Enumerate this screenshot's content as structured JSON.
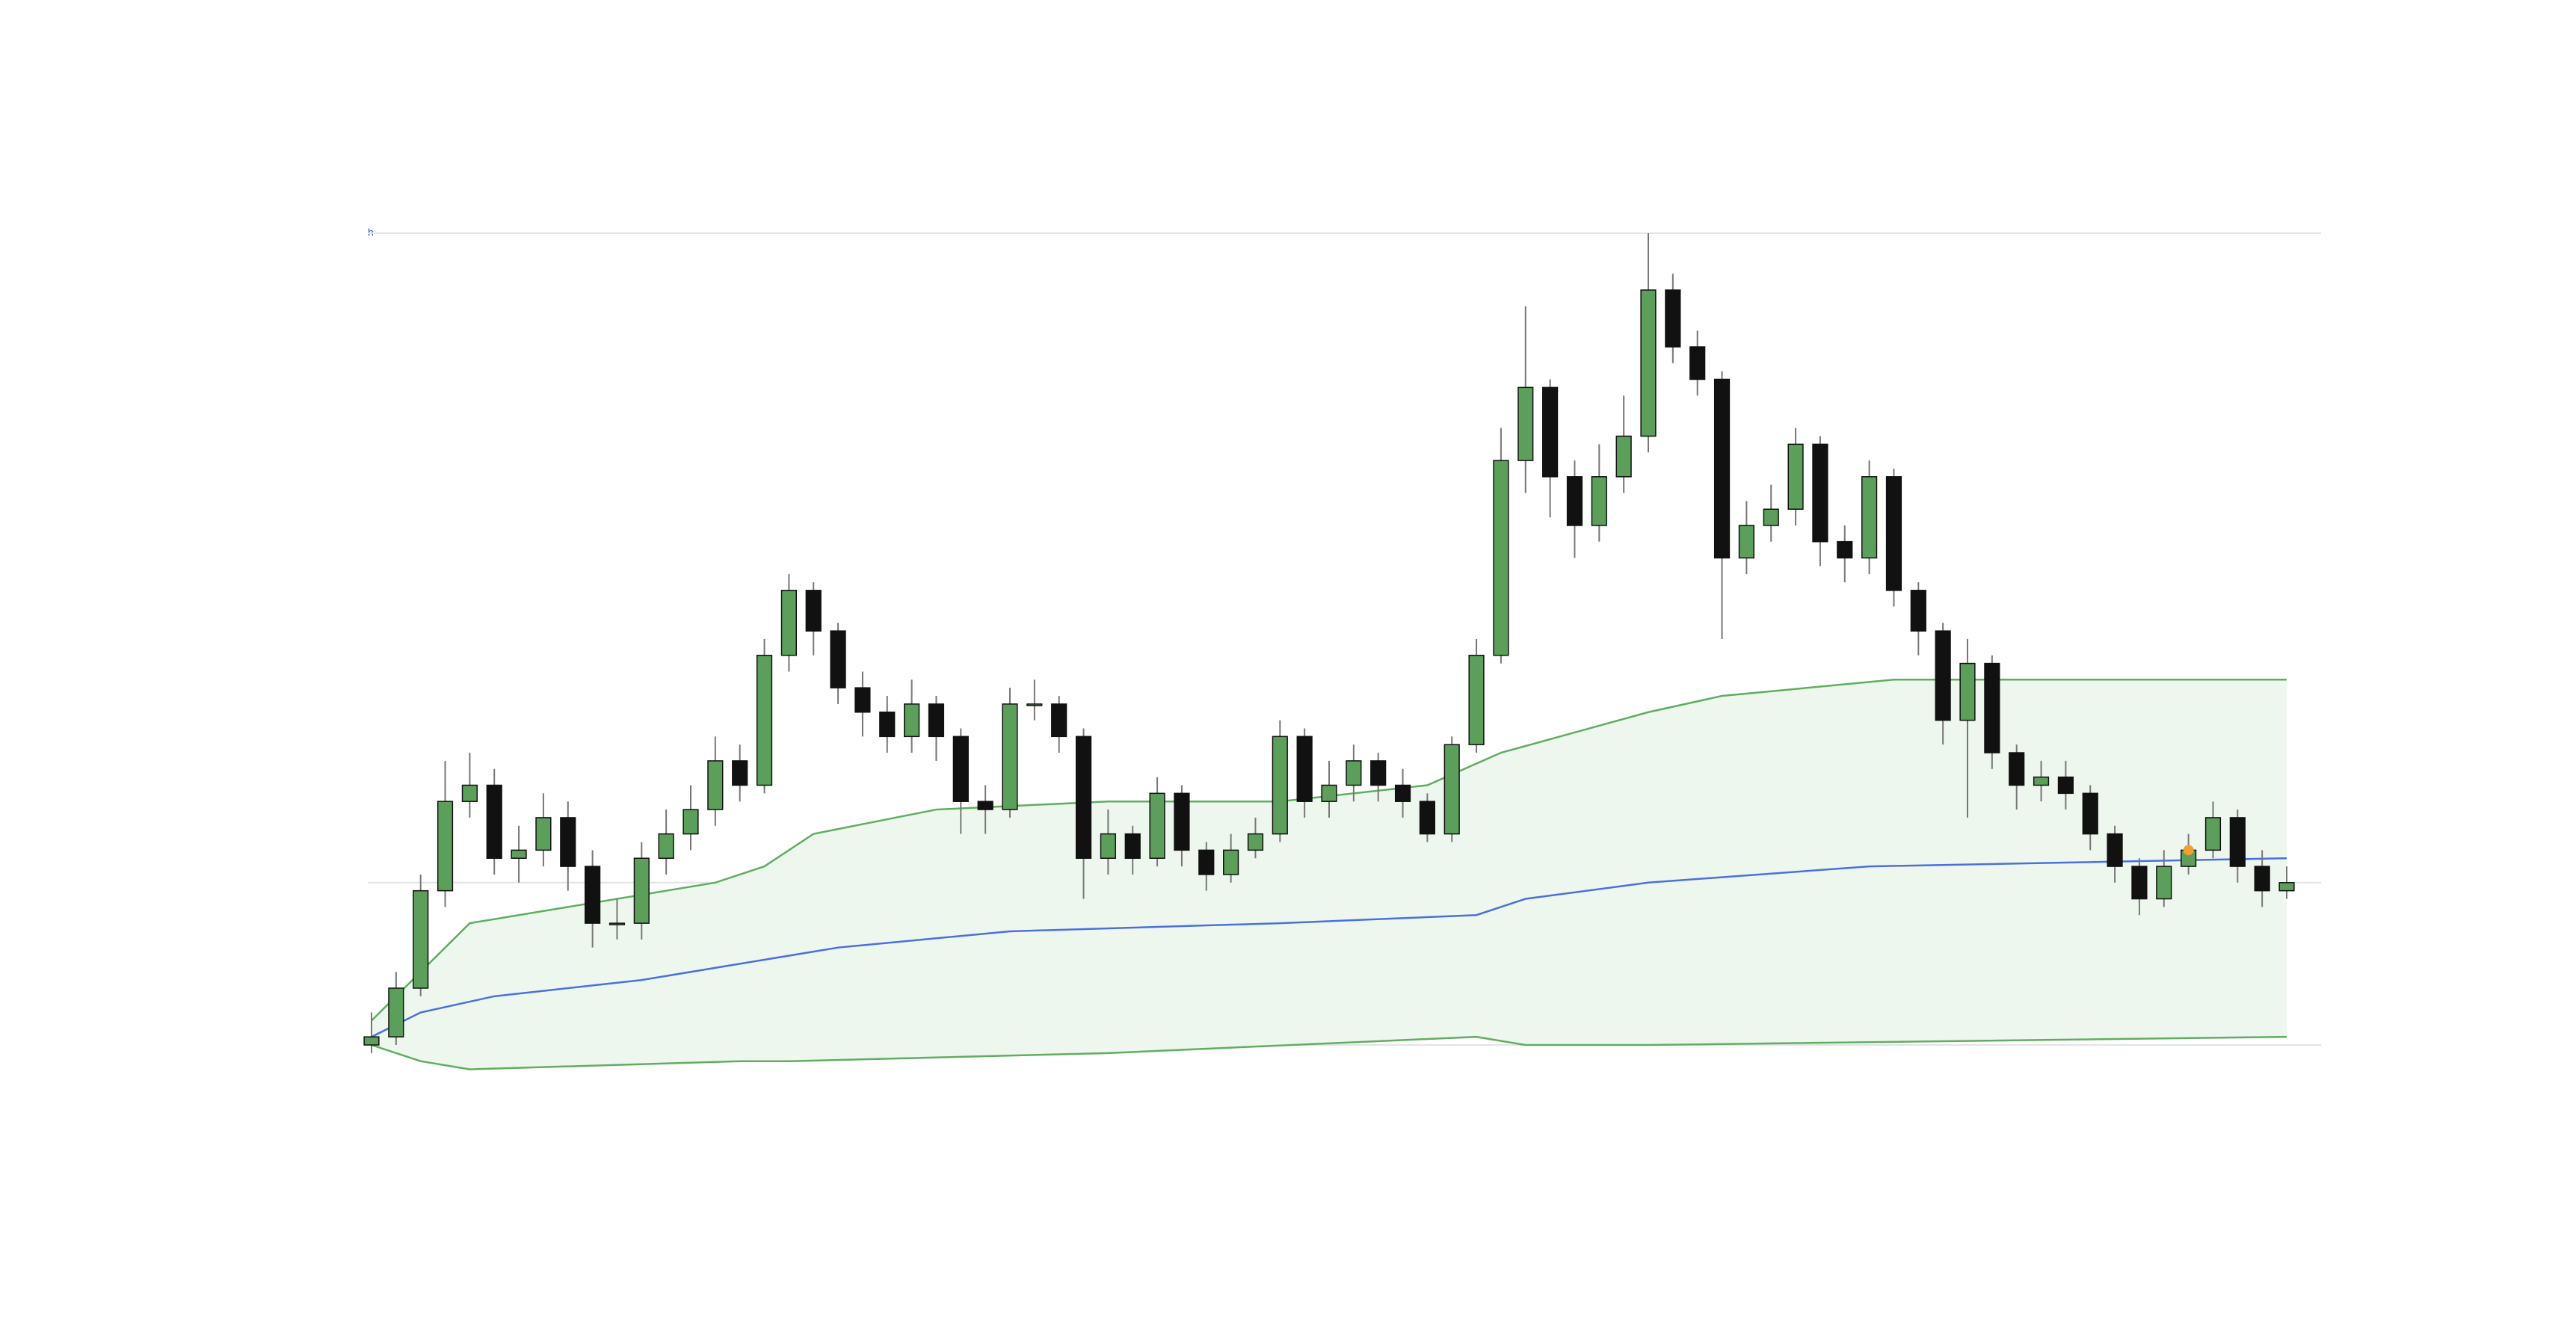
{
  "chart_data": {
    "type": "candlestick",
    "label": "h",
    "open": [
      0,
      1,
      7,
      19,
      30,
      32,
      23,
      24,
      28,
      22,
      15,
      15,
      23,
      26,
      29,
      35,
      32,
      48,
      56,
      51,
      44,
      41,
      38,
      42,
      38,
      30,
      29,
      42,
      42,
      38,
      23,
      26,
      23,
      31,
      24,
      21,
      24,
      26,
      38,
      30,
      32,
      35,
      32,
      30,
      26,
      37,
      48,
      72,
      81,
      70,
      64,
      70,
      75,
      93,
      86,
      82,
      60,
      64,
      66,
      74,
      62,
      60,
      70,
      56,
      51,
      40,
      47,
      36,
      32,
      33,
      31,
      26,
      22,
      18,
      22,
      24,
      28,
      22,
      19
    ],
    "high": [
      4,
      9,
      21,
      35,
      36,
      34,
      27,
      31,
      30,
      24,
      18,
      25,
      29,
      32,
      38,
      37,
      50,
      58,
      57,
      52,
      46,
      43,
      45,
      43,
      39,
      32,
      44,
      45,
      43,
      39,
      29,
      27,
      33,
      32,
      25,
      26,
      28,
      40,
      39,
      35,
      37,
      36,
      34,
      31,
      38,
      50,
      76,
      91,
      82,
      72,
      74,
      80,
      100,
      95,
      88,
      83,
      67,
      69,
      76,
      75,
      64,
      72,
      71,
      57,
      52,
      50,
      48,
      37,
      35,
      35,
      32,
      27,
      23,
      24,
      26,
      30,
      29,
      24,
      22
    ],
    "low": [
      -1,
      0,
      6,
      17,
      28,
      21,
      20,
      22,
      19,
      12,
      13,
      13,
      21,
      24,
      27,
      30,
      31,
      46,
      48,
      42,
      38,
      36,
      36,
      35,
      26,
      26,
      28,
      40,
      36,
      18,
      21,
      21,
      22,
      22,
      19,
      20,
      23,
      25,
      28,
      28,
      30,
      30,
      28,
      25,
      25,
      36,
      47,
      68,
      65,
      60,
      62,
      68,
      73,
      84,
      80,
      50,
      58,
      62,
      64,
      59,
      57,
      58,
      54,
      48,
      37,
      28,
      34,
      29,
      30,
      29,
      24,
      20,
      16,
      17,
      21,
      23,
      20,
      17,
      18
    ],
    "close": [
      1,
      7,
      19,
      30,
      32,
      23,
      24,
      28,
      22,
      15,
      15,
      23,
      26,
      29,
      35,
      32,
      48,
      56,
      51,
      44,
      41,
      38,
      42,
      38,
      30,
      29,
      42,
      42,
      38,
      23,
      26,
      23,
      31,
      24,
      21,
      24,
      26,
      38,
      30,
      32,
      35,
      32,
      30,
      26,
      37,
      48,
      72,
      81,
      70,
      64,
      70,
      75,
      93,
      86,
      82,
      60,
      64,
      66,
      74,
      62,
      60,
      70,
      56,
      51,
      40,
      47,
      36,
      32,
      33,
      31,
      26,
      22,
      18,
      22,
      24,
      28,
      22,
      19,
      20
    ],
    "up_color": "#5b9f5b",
    "down_color": "#111111",
    "bands": [
      {
        "color": "#5fae5f",
        "x": [
          0,
          2,
          4,
          8,
          14,
          16,
          18,
          23,
          30,
          37,
          43,
          46,
          52,
          55,
          62,
          69,
          78
        ],
        "values": [
          3,
          9,
          15,
          17,
          20,
          22,
          26,
          29,
          30,
          30,
          32,
          36,
          41,
          43,
          45,
          45,
          45
        ]
      },
      {
        "color": "#4a6fe0",
        "x": [
          0,
          2,
          5,
          11,
          15,
          19,
          26,
          37,
          45,
          47,
          52,
          61,
          78
        ],
        "values": [
          1,
          4,
          6,
          8,
          10,
          12,
          14,
          15,
          16,
          18,
          20,
          22,
          23
        ]
      },
      {
        "color": "#5fae5f",
        "x": [
          0,
          2,
          4,
          15,
          17,
          30,
          45,
          47,
          52,
          78
        ],
        "values": [
          0,
          -2,
          -3,
          -2,
          -2,
          -1,
          1,
          0,
          0,
          1
        ]
      }
    ],
    "band_fill": "#eef7ee",
    "marker": {
      "x": 74,
      "value": 24,
      "color": "#f0a030"
    },
    "ylim": [
      0,
      100
    ],
    "yticks": [
      0,
      20,
      100
    ]
  }
}
